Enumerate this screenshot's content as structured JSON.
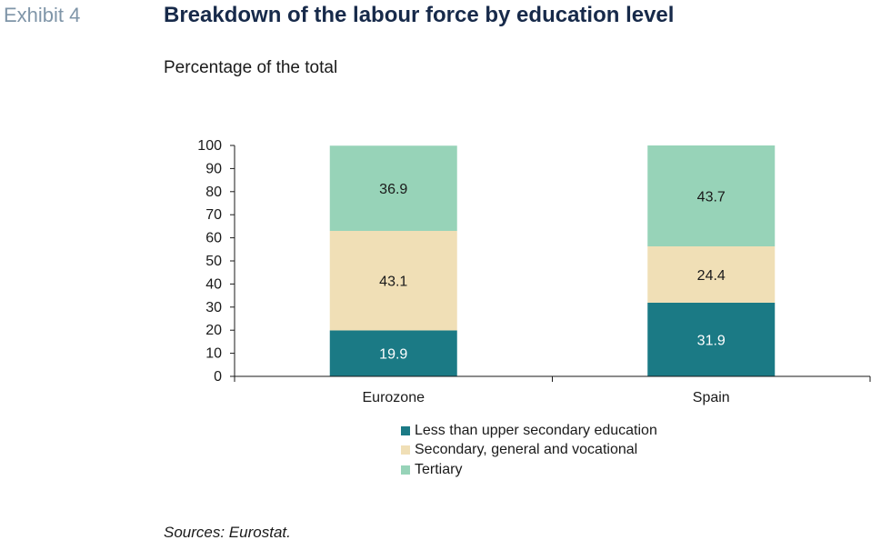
{
  "header": {
    "exhibit": "Exhibit 4",
    "title": "Breakdown of the labour force by education level",
    "subtitle": "Percentage of the total"
  },
  "source": "Sources: Eurostat.",
  "chart_data": {
    "type": "bar",
    "stacked": true,
    "categories": [
      "Eurozone",
      "Spain"
    ],
    "series": [
      {
        "name": "Less than upper secondary education",
        "values": [
          19.9,
          31.9
        ],
        "color": "#1b7a85",
        "label_color": "#ffffff"
      },
      {
        "name": "Secondary, general and vocational",
        "values": [
          43.1,
          24.4
        ],
        "color": "#f0dfb6",
        "label_color": "#1a1a1a"
      },
      {
        "name": "Tertiary",
        "values": [
          36.9,
          43.7
        ],
        "color": "#97d3b8",
        "label_color": "#1a1a1a"
      }
    ],
    "ylim": [
      0,
      100
    ],
    "yticks": [
      0,
      10,
      20,
      30,
      40,
      50,
      60,
      70,
      80,
      90,
      100
    ],
    "grid": false,
    "legend_position": "bottom-center"
  }
}
